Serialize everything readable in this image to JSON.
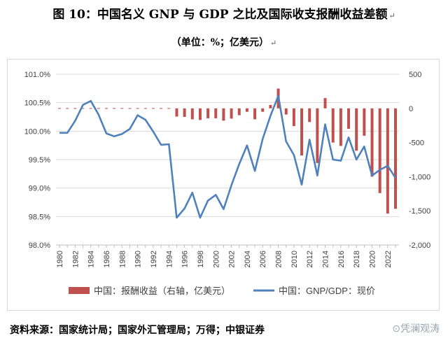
{
  "title": "图 10：中国名义 GNP 与 GDP 之比及国际收支报酬收益差额",
  "subtitle": "（单位：%；亿美元）",
  "paragraph_mark": "↵",
  "source": "资料来源：国家统计局；国家外汇管理局；万得；中银证券",
  "watermark": "凭澜观涛",
  "colors": {
    "bar": "#c0504d",
    "line": "#4f81bd",
    "grid": "#d9d9d9",
    "axis": "#bfbfbf"
  },
  "chart_data": {
    "type": "bar+line",
    "years": [
      1980,
      1981,
      1982,
      1983,
      1984,
      1985,
      1986,
      1987,
      1988,
      1989,
      1990,
      1991,
      1992,
      1993,
      1994,
      1995,
      1996,
      1997,
      1998,
      1999,
      2000,
      2001,
      2002,
      2003,
      2004,
      2005,
      2006,
      2007,
      2008,
      2009,
      2010,
      2011,
      2012,
      2013,
      2014,
      2015,
      2016,
      2017,
      2018,
      2019,
      2020,
      2021,
      2022,
      2023
    ],
    "x_tick_labels": [
      "1980",
      "1982",
      "1984",
      "1986",
      "1988",
      "1990",
      "1992",
      "1994",
      "1996",
      "1998",
      "2000",
      "2002",
      "2004",
      "2006",
      "2008",
      "2010",
      "2012",
      "2014",
      "2016",
      "2018",
      "2020",
      "2022"
    ],
    "left_axis": {
      "ticks": [
        "98.0%",
        "98.5%",
        "99.0%",
        "99.5%",
        "100.0%",
        "100.5%",
        "101.0%"
      ],
      "min": 98.0,
      "max": 101.0
    },
    "right_axis": {
      "ticks": [
        "-2,000",
        "-1,500",
        "-1,000",
        "-500",
        "0",
        "500"
      ],
      "min": -2000,
      "max": 500
    },
    "series": [
      {
        "name": "中国：报酬收益（右轴，亿美元）",
        "axis": "right",
        "type": "bar",
        "values": [
          -10,
          -10,
          -5,
          -5,
          0,
          5,
          5,
          5,
          5,
          -5,
          20,
          20,
          5,
          -10,
          -20,
          -120,
          -125,
          -160,
          -170,
          -145,
          -145,
          -180,
          -150,
          -100,
          -50,
          -160,
          -50,
          50,
          290,
          -90,
          -260,
          -690,
          -200,
          -800,
          150,
          -500,
          -550,
          -300,
          -620,
          -400,
          -1000,
          -1240,
          -1540,
          -1470
        ]
      },
      {
        "name": "中国：GNP/GDP：现价",
        "axis": "left",
        "type": "line",
        "values": [
          99.97,
          99.97,
          100.18,
          100.46,
          100.53,
          100.29,
          99.96,
          99.91,
          99.95,
          100.04,
          100.28,
          100.2,
          99.99,
          99.76,
          99.77,
          98.48,
          98.64,
          98.92,
          98.48,
          98.78,
          98.88,
          98.63,
          99.05,
          99.42,
          99.75,
          99.3,
          99.86,
          100.27,
          100.62,
          99.82,
          99.58,
          99.06,
          99.85,
          99.22,
          100.12,
          99.5,
          99.48,
          99.89,
          99.5,
          99.73,
          99.22,
          99.32,
          99.39,
          99.18
        ]
      }
    ],
    "legend_position": "bottom",
    "grid": true
  }
}
